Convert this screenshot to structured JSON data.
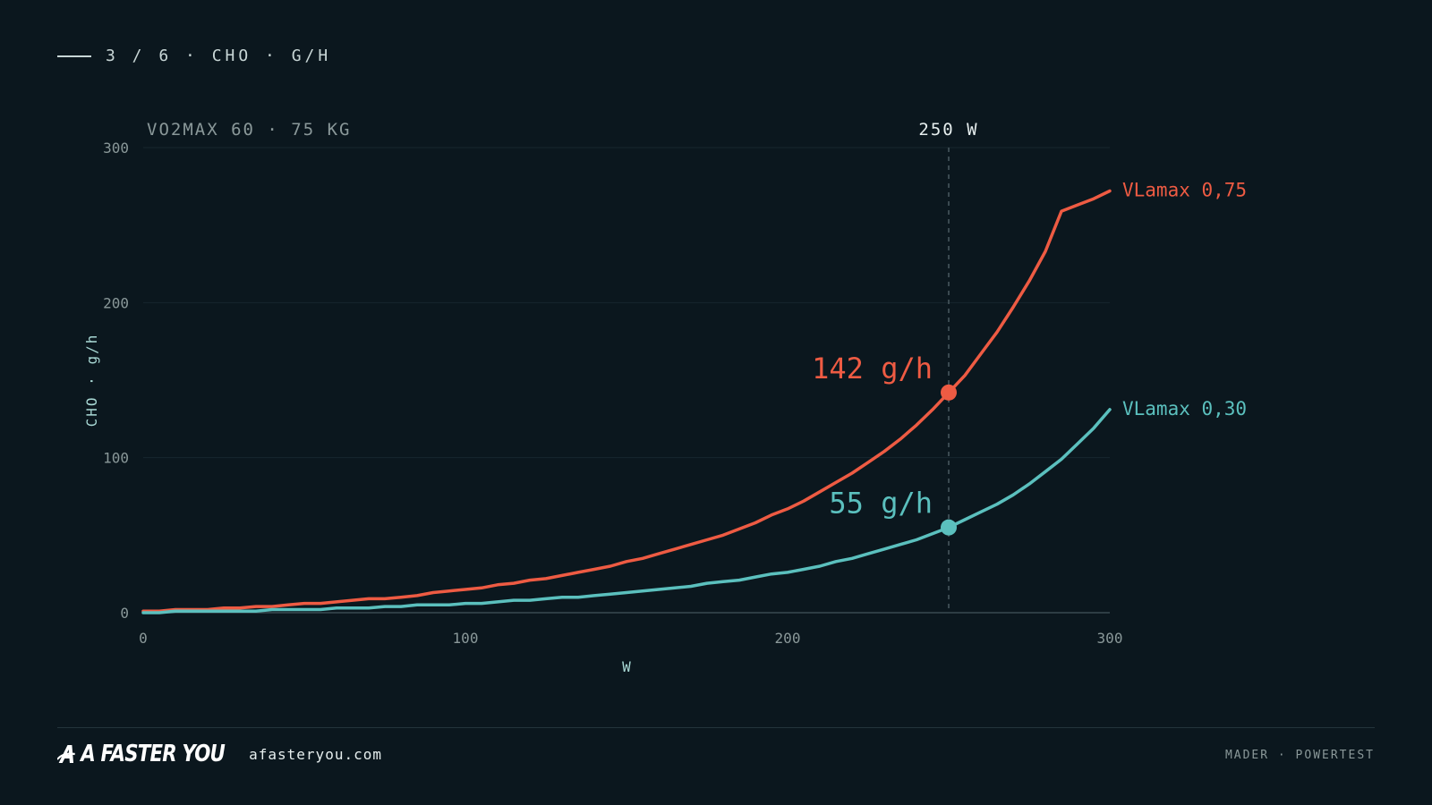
{
  "header": {
    "label": "3 / 6 · CHO · G/H"
  },
  "chart_data": {
    "type": "line",
    "subtitle": "VO2MAX 60 · 75 KG",
    "xlabel": "W",
    "ylabel": "CHO · g/h",
    "xlim": [
      0,
      300
    ],
    "ylim": [
      0,
      300
    ],
    "xticks": [
      0,
      100,
      200,
      300
    ],
    "yticks": [
      0,
      100,
      200,
      300
    ],
    "grid": true,
    "marker": {
      "x": 250,
      "label": "250 W"
    },
    "series": [
      {
        "name": "VLamax 0,75",
        "color": "#ee5b43",
        "x": [
          0,
          5,
          10,
          15,
          20,
          25,
          30,
          35,
          40,
          45,
          50,
          55,
          60,
          65,
          70,
          75,
          80,
          85,
          90,
          95,
          100,
          105,
          110,
          115,
          120,
          125,
          130,
          135,
          140,
          145,
          150,
          155,
          160,
          165,
          170,
          175,
          180,
          185,
          190,
          195,
          200,
          205,
          210,
          215,
          220,
          225,
          230,
          235,
          240,
          245,
          250,
          255,
          260,
          265,
          270,
          275,
          280,
          285,
          290,
          295,
          300
        ],
        "y": [
          1,
          1,
          2,
          2,
          2,
          3,
          3,
          4,
          4,
          5,
          6,
          6,
          7,
          8,
          9,
          9,
          10,
          11,
          13,
          14,
          15,
          16,
          18,
          19,
          21,
          22,
          24,
          26,
          28,
          30,
          33,
          35,
          38,
          41,
          44,
          47,
          50,
          54,
          58,
          63,
          67,
          72,
          78,
          84,
          90,
          97,
          104,
          112,
          121,
          131,
          142,
          153,
          167,
          181,
          197,
          214,
          233,
          259,
          263,
          267,
          272
        ],
        "end_label": "VLamax 0,75",
        "point_label": "142 g/h"
      },
      {
        "name": "VLamax 0,30",
        "color": "#5bc0be",
        "x": [
          0,
          5,
          10,
          15,
          20,
          25,
          30,
          35,
          40,
          45,
          50,
          55,
          60,
          65,
          70,
          75,
          80,
          85,
          90,
          95,
          100,
          105,
          110,
          115,
          120,
          125,
          130,
          135,
          140,
          145,
          150,
          155,
          160,
          165,
          170,
          175,
          180,
          185,
          190,
          195,
          200,
          205,
          210,
          215,
          220,
          225,
          230,
          235,
          240,
          245,
          250,
          255,
          260,
          265,
          270,
          275,
          280,
          285,
          290,
          295,
          300
        ],
        "y": [
          0,
          0,
          1,
          1,
          1,
          1,
          1,
          1,
          2,
          2,
          2,
          2,
          3,
          3,
          3,
          4,
          4,
          5,
          5,
          5,
          6,
          6,
          7,
          8,
          8,
          9,
          10,
          10,
          11,
          12,
          13,
          14,
          15,
          16,
          17,
          19,
          20,
          21,
          23,
          25,
          26,
          28,
          30,
          33,
          35,
          38,
          41,
          44,
          47,
          51,
          55,
          60,
          65,
          70,
          76,
          83,
          91,
          99,
          109,
          119,
          131
        ],
        "end_label": "VLamax 0,30",
        "point_label": "55 g/h"
      }
    ]
  },
  "footer": {
    "brand": "A FASTER YOU",
    "site": "afasteryou.com",
    "right": "MADER · POWERTEST"
  }
}
